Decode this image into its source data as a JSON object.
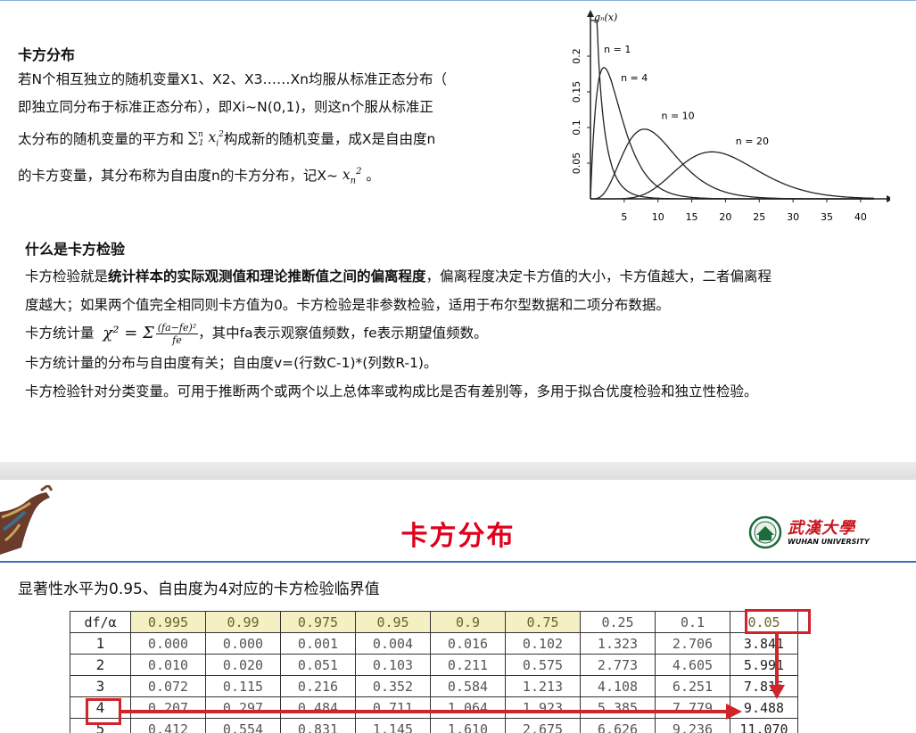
{
  "slide1": {
    "heading1": "卡方分布",
    "para1": {
      "line1": "若N个相互独立的随机变量X1、X2、X3……Xn均服从标准正态分布（",
      "line2": "即独立同分布于标准正态分布），即Xi~N(0,1)，则这n个服从标准正",
      "line3a": "太分布的随机变量的平方和 ",
      "sum_expr": "∑",
      "sum_sup": "n",
      "sum_sub": "1",
      "sum_var": "x",
      "sum_var_sub": "i",
      "sum_var_sup": "2",
      "line3b": "构成新的随机变量，成X是自由度n",
      "line4a": "的卡方变量，其分布称为自由度n的卡方分布，记X~ ",
      "x_var": "x",
      "x_sub": "n",
      "x_sup": "2",
      "line4b": " 。"
    },
    "heading2": "什么是卡方检验",
    "para2": {
      "line1a": "卡方检验就是",
      "line1bold": "统计样本的实际观测值和理论推断值之间的偏离程度",
      "line1b": "，偏离程度决定卡方值的大小，卡方值越大，二者偏离程",
      "line2": "度越大；如果两个值完全相同则卡方值为0。卡方检验是非参数检验，适用于布尔型数据和二项分布数据。",
      "line3a": "卡方统计量",
      "chi_lhs": "χ² = Σ",
      "chi_num": "(fa−fe)²",
      "chi_den": "fe",
      "line3b": "，其中fa表示观察值频数，fe表示期望值频数。",
      "line4": "卡方统计量的分布与自由度有关；自由度v=(行数C-1)*(列数R-1)。",
      "line5": "卡方检验针对分类变量。可用于推断两个或两个以上总体率或构成比是否有差别等，多用于拟合优度检验和独立性检验。"
    }
  },
  "chart_data": {
    "type": "line",
    "title": "",
    "ylabel": "gₙ(x)",
    "xlabel": "x",
    "xlim": [
      0,
      42
    ],
    "ylim": [
      0,
      0.25
    ],
    "x_ticks": [
      5,
      10,
      15,
      20,
      25,
      30,
      35,
      40
    ],
    "y_ticks": [
      0.05,
      0.1,
      0.15,
      0.2
    ],
    "series": [
      {
        "name": "n = 1",
        "dof": 1
      },
      {
        "name": "n = 4",
        "dof": 4
      },
      {
        "name": "n = 10",
        "dof": 10
      },
      {
        "name": "n = 20",
        "dof": 20
      }
    ]
  },
  "slide2": {
    "title": "卡方分布",
    "logo_text": "武漢大學",
    "logo_sub": "WUHAN UNIVERSITY",
    "subtitle": "显著性水平为0.95、自由度为4对应的卡方检验临界值",
    "table": {
      "corner": "df/α",
      "headers": [
        "0.995",
        "0.99",
        "0.975",
        "0.95",
        "0.9",
        "0.75",
        "0.25",
        "0.1",
        "0.05"
      ],
      "rows": [
        {
          "df": "1",
          "cells": [
            "0.000",
            "0.000",
            "0.001",
            "0.004",
            "0.016",
            "0.102",
            "1.323",
            "2.706",
            "3.841"
          ]
        },
        {
          "df": "2",
          "cells": [
            "0.010",
            "0.020",
            "0.051",
            "0.103",
            "0.211",
            "0.575",
            "2.773",
            "4.605",
            "5.991"
          ]
        },
        {
          "df": "3",
          "cells": [
            "0.072",
            "0.115",
            "0.216",
            "0.352",
            "0.584",
            "1.213",
            "4.108",
            "6.251",
            "7.815"
          ]
        },
        {
          "df": "4",
          "cells": [
            "0.207",
            "0.297",
            "0.484",
            "0.711",
            "1.064",
            "1.923",
            "5.385",
            "7.779",
            "9.488"
          ]
        },
        {
          "df": "5",
          "cells": [
            "0.412",
            "0.554",
            "0.831",
            "1.145",
            "1.610",
            "2.675",
            "6.626",
            "9.236",
            "11.070"
          ]
        }
      ]
    }
  }
}
